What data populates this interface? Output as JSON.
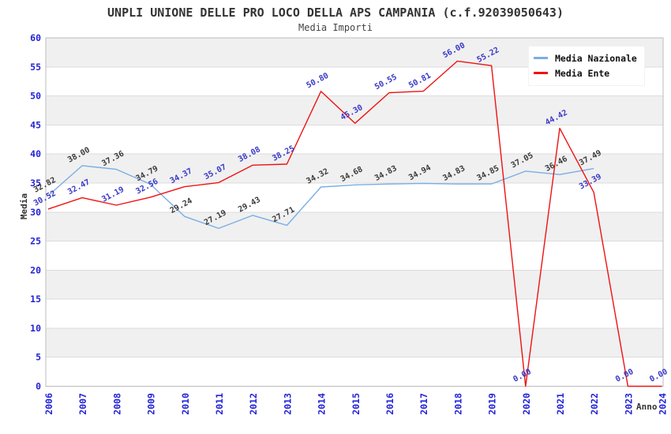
{
  "header": {
    "title": "UNPLI UNIONE DELLE PRO LOCO DELLA APS CAMPANIA (c.f.92039050643)",
    "subtitle": "Media Importi"
  },
  "legend": {
    "items": [
      {
        "label": "Media Nazionale",
        "color": "#79aee6"
      },
      {
        "label": "Media Ente",
        "color": "#ef1212"
      }
    ]
  },
  "chart_data": {
    "type": "line",
    "title": "UNPLI UNIONE DELLE PRO LOCO DELLA APS CAMPANIA (c.f.92039050643)",
    "subtitle": "Media Importi",
    "xlabel": "Anno",
    "ylabel": "Media",
    "x": [
      2006,
      2007,
      2008,
      2009,
      2010,
      2011,
      2012,
      2013,
      2014,
      2015,
      2016,
      2017,
      2018,
      2019,
      2020,
      2021,
      2022,
      2023,
      2024
    ],
    "series": [
      {
        "name": "Media Nazionale",
        "color": "#79aee6",
        "label_color": "#3a3a3a",
        "values": [
          32.82,
          38.0,
          37.36,
          34.79,
          29.24,
          27.19,
          29.43,
          27.71,
          34.32,
          34.68,
          34.83,
          34.94,
          34.83,
          34.85,
          37.05,
          36.46,
          37.49,
          null,
          null
        ]
      },
      {
        "name": "Media Ente",
        "color": "#ef1212",
        "label_color": "#3838c8",
        "values": [
          30.52,
          32.47,
          31.19,
          32.56,
          34.37,
          35.07,
          38.08,
          38.25,
          50.8,
          45.3,
          50.55,
          50.81,
          56.0,
          55.22,
          0.0,
          44.42,
          33.39,
          0.0,
          0.0
        ]
      }
    ],
    "ylim": [
      0,
      60
    ],
    "ytick_step": 5,
    "value_label_decimals": 2,
    "grid": "horizontal-bands",
    "band_colors": [
      "#ffffff",
      "#f0f0f0"
    ],
    "gridline_color": "#dcdcdc",
    "border_color": "#bbbbbb",
    "tick_label_color": "#2323d7",
    "legend_position": "top-right"
  }
}
